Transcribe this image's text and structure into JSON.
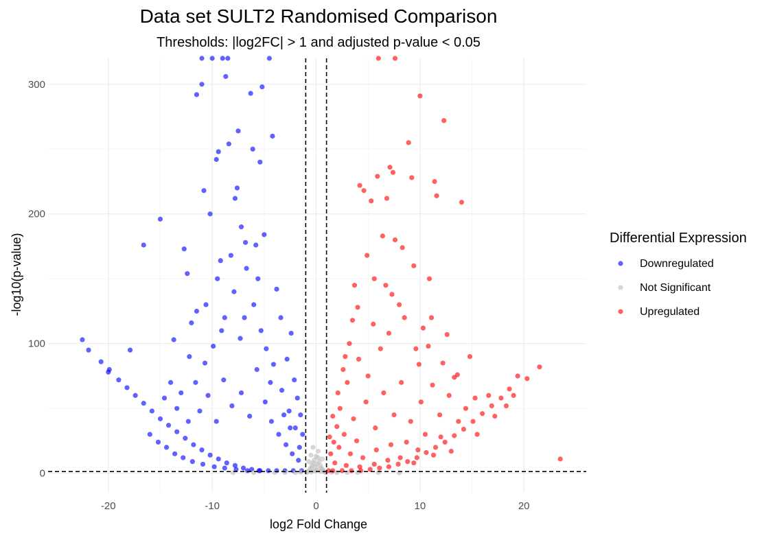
{
  "chart_data": {
    "type": "scatter",
    "title": "Data set SULT2 Randomised Comparison",
    "subtitle": "Thresholds: |log2FC| > 1 and adjusted p-value < 0.05",
    "xlabel": "log2 Fold Change",
    "ylabel": "-log10(p-value)",
    "xlim": [
      -25.8,
      26.0
    ],
    "ylim": [
      -15,
      320
    ],
    "x_ticks": [
      -20,
      -10,
      0,
      10,
      20
    ],
    "y_ticks": [
      0,
      100,
      200,
      300
    ],
    "grid": true,
    "log2fc_threshold": 1,
    "neglog10p_threshold": 1.3,
    "legend": {
      "title": "Differential Expression",
      "placement": "right",
      "entries": [
        {
          "label": "Downregulated",
          "color": "#0000ff"
        },
        {
          "label": "Not Significant",
          "color": "#bfbfbf"
        },
        {
          "label": "Upregulated",
          "color": "#ff0000"
        }
      ]
    },
    "series": [
      {
        "name": "Downregulated",
        "color": "#0000ff",
        "points": [
          [
            -22.5,
            103
          ],
          [
            -21.9,
            95
          ],
          [
            -20.7,
            86
          ],
          [
            -20.0,
            78
          ],
          [
            -17.9,
            95
          ],
          [
            -16.6,
            176
          ],
          [
            -15.0,
            196
          ],
          [
            -13.7,
            103
          ],
          [
            -12.7,
            173
          ],
          [
            -12.4,
            154
          ],
          [
            -12.0,
            116
          ],
          [
            -11.5,
            125
          ],
          [
            -10.8,
            218
          ],
          [
            -10.2,
            200
          ],
          [
            -9.6,
            242
          ],
          [
            -9.4,
            248
          ],
          [
            -9.2,
            164
          ],
          [
            -8.7,
            306
          ],
          [
            -8.4,
            254
          ],
          [
            -7.8,
            212
          ],
          [
            -7.6,
            220
          ],
          [
            -7.5,
            264
          ],
          [
            -7.2,
            190
          ],
          [
            -6.8,
            178
          ],
          [
            -6.3,
            293
          ],
          [
            -6.1,
            250
          ],
          [
            -5.8,
            176
          ],
          [
            -5.4,
            240
          ],
          [
            -5.2,
            298
          ],
          [
            -5.0,
            184
          ],
          [
            -4.2,
            260
          ],
          [
            -3.8,
            142
          ],
          [
            -2.4,
            108
          ],
          [
            -11.0,
            300
          ],
          [
            -11.5,
            292
          ],
          [
            -11.0,
            320
          ],
          [
            -10.0,
            320
          ],
          [
            -9.0,
            320
          ],
          [
            -8.5,
            320
          ],
          [
            -4.5,
            320
          ],
          [
            -19.9,
            80
          ],
          [
            -19.0,
            72
          ],
          [
            -18.2,
            66
          ],
          [
            -17.4,
            60
          ],
          [
            -16.6,
            54
          ],
          [
            -15.8,
            48
          ],
          [
            -15.0,
            42
          ],
          [
            -14.2,
            37
          ],
          [
            -13.4,
            32
          ],
          [
            -12.6,
            27
          ],
          [
            -11.8,
            22
          ],
          [
            -11.0,
            18
          ],
          [
            -10.2,
            14
          ],
          [
            -9.4,
            11
          ],
          [
            -8.6,
            8
          ],
          [
            -7.8,
            6
          ],
          [
            -7.0,
            4
          ],
          [
            -6.2,
            3
          ],
          [
            -5.4,
            2
          ],
          [
            -4.6,
            2
          ],
          [
            -3.8,
            2
          ],
          [
            -3.0,
            2
          ],
          [
            -2.2,
            2
          ],
          [
            -1.4,
            2
          ],
          [
            -9.5,
            150
          ],
          [
            -8.2,
            168
          ],
          [
            -6.7,
            158
          ],
          [
            -5.6,
            150
          ],
          [
            -3.4,
            120
          ],
          [
            -2.8,
            88
          ],
          [
            -2.1,
            72
          ],
          [
            -1.8,
            58
          ],
          [
            -1.5,
            45
          ],
          [
            -1.3,
            30
          ],
          [
            -12.2,
            90
          ],
          [
            -13.0,
            62
          ],
          [
            -14.0,
            70
          ],
          [
            -10.6,
            130
          ],
          [
            -9.9,
            98
          ],
          [
            -8.8,
            120
          ],
          [
            -7.3,
            104
          ],
          [
            -6.0,
            130
          ],
          [
            -4.8,
            96
          ],
          [
            -4.1,
            84
          ],
          [
            -3.3,
            64
          ],
          [
            -2.6,
            48
          ],
          [
            -2.0,
            35
          ],
          [
            -1.6,
            20
          ],
          [
            -16.0,
            30
          ],
          [
            -15.2,
            24
          ],
          [
            -14.4,
            20
          ],
          [
            -13.6,
            15
          ],
          [
            -12.8,
            12
          ],
          [
            -11.9,
            9
          ],
          [
            -10.9,
            7
          ],
          [
            -9.8,
            5
          ],
          [
            -8.8,
            4
          ],
          [
            -7.7,
            3
          ],
          [
            -6.6,
            2
          ],
          [
            -5.5,
            2
          ],
          [
            -11.2,
            48
          ],
          [
            -10.4,
            60
          ],
          [
            -9.6,
            40
          ],
          [
            -8.9,
            72
          ],
          [
            -8.1,
            52
          ],
          [
            -7.2,
            62
          ],
          [
            -6.4,
            44
          ],
          [
            -5.7,
            80
          ],
          [
            -4.9,
            55
          ],
          [
            -4.3,
            40
          ],
          [
            -3.6,
            30
          ],
          [
            -2.9,
            22
          ],
          [
            -2.3,
            15
          ],
          [
            -1.7,
            10
          ],
          [
            -12.3,
            40
          ],
          [
            -13.4,
            50
          ],
          [
            -14.6,
            58
          ],
          [
            -11.6,
            70
          ],
          [
            -10.7,
            85
          ],
          [
            -9.1,
            110
          ],
          [
            -7.9,
            140
          ],
          [
            -6.9,
            120
          ],
          [
            -5.3,
            110
          ],
          [
            -4.4,
            70
          ],
          [
            -3.1,
            45
          ],
          [
            -2.5,
            35
          ]
        ]
      },
      {
        "name": "Not Significant",
        "color": "#bfbfbf",
        "points": [
          [
            -0.9,
            0.5
          ],
          [
            -0.8,
            1.5
          ],
          [
            -0.6,
            3
          ],
          [
            -0.5,
            4
          ],
          [
            -0.4,
            6
          ],
          [
            -0.3,
            8
          ],
          [
            -0.2,
            10
          ],
          [
            -0.1,
            5
          ],
          [
            0.0,
            2
          ],
          [
            0.1,
            7
          ],
          [
            0.2,
            12
          ],
          [
            0.3,
            9
          ],
          [
            0.4,
            6
          ],
          [
            0.5,
            4
          ],
          [
            0.6,
            3
          ],
          [
            0.7,
            2
          ],
          [
            0.8,
            1.2
          ],
          [
            0.9,
            0.6
          ],
          [
            -2.0,
            0.4
          ],
          [
            -4.0,
            0.6
          ],
          [
            -6.0,
            0.5
          ],
          [
            -8.0,
            0.4
          ],
          [
            2.0,
            0.5
          ],
          [
            4.0,
            0.6
          ],
          [
            6.0,
            0.5
          ],
          [
            8.0,
            0.4
          ],
          [
            -0.5,
            14
          ],
          [
            0.2,
            17
          ],
          [
            -0.3,
            20
          ],
          [
            0.0,
            13
          ],
          [
            -0.7,
            9
          ],
          [
            0.6,
            11
          ],
          [
            -1.5,
            0.8
          ],
          [
            1.5,
            0.8
          ],
          [
            -3.0,
            0.5
          ],
          [
            3.0,
            0.5
          ],
          [
            -0.15,
            2
          ],
          [
            0.15,
            3
          ],
          [
            -0.45,
            1
          ],
          [
            0.45,
            1.5
          ]
        ]
      },
      {
        "name": "Upregulated",
        "color": "#ff0000",
        "points": [
          [
            23.5,
            11
          ],
          [
            21.5,
            82
          ],
          [
            20.3,
            73
          ],
          [
            19.4,
            75
          ],
          [
            18.6,
            65
          ],
          [
            17.8,
            58
          ],
          [
            16.9,
            52
          ],
          [
            16.0,
            46
          ],
          [
            15.1,
            40
          ],
          [
            14.2,
            34
          ],
          [
            13.3,
            29
          ],
          [
            12.4,
            24
          ],
          [
            11.5,
            20
          ],
          [
            10.6,
            16
          ],
          [
            9.7,
            12
          ],
          [
            8.8,
            9
          ],
          [
            7.9,
            7
          ],
          [
            7.0,
            5
          ],
          [
            6.1,
            4
          ],
          [
            5.2,
            3
          ],
          [
            4.3,
            2
          ],
          [
            3.4,
            2
          ],
          [
            2.5,
            2
          ],
          [
            1.6,
            2
          ],
          [
            1.2,
            2
          ],
          [
            1.3,
            28
          ],
          [
            1.6,
            44
          ],
          [
            2.1,
            62
          ],
          [
            2.6,
            80
          ],
          [
            3.2,
            100
          ],
          [
            3.7,
            145
          ],
          [
            4.2,
            222
          ],
          [
            4.6,
            218
          ],
          [
            5.3,
            210
          ],
          [
            5.9,
            229
          ],
          [
            6.4,
            183
          ],
          [
            6.8,
            212
          ],
          [
            7.1,
            236
          ],
          [
            7.4,
            232
          ],
          [
            7.6,
            180
          ],
          [
            8.3,
            174
          ],
          [
            8.9,
            255
          ],
          [
            9.2,
            228
          ],
          [
            9.4,
            160
          ],
          [
            10.0,
            291
          ],
          [
            10.3,
            112
          ],
          [
            10.9,
            150
          ],
          [
            11.1,
            120
          ],
          [
            11.4,
            225
          ],
          [
            11.6,
            214
          ],
          [
            12.3,
            272
          ],
          [
            12.6,
            107
          ],
          [
            13.3,
            74
          ],
          [
            14.0,
            209
          ],
          [
            14.8,
            90
          ],
          [
            6.0,
            320
          ],
          [
            7.6,
            320
          ],
          [
            4.9,
            168
          ],
          [
            5.6,
            150
          ],
          [
            6.7,
            145
          ],
          [
            7.3,
            138
          ],
          [
            8.0,
            130
          ],
          [
            5.5,
            115
          ],
          [
            4.0,
            128
          ],
          [
            3.5,
            118
          ],
          [
            2.8,
            90
          ],
          [
            9.6,
            96
          ],
          [
            10.8,
            98
          ],
          [
            12.2,
            85
          ],
          [
            13.6,
            76
          ],
          [
            15.3,
            58
          ],
          [
            16.6,
            60
          ],
          [
            2.3,
            50
          ],
          [
            2.0,
            36
          ],
          [
            1.7,
            24
          ],
          [
            1.4,
            15
          ],
          [
            3.0,
            70
          ],
          [
            4.1,
            88
          ],
          [
            5.0,
            75
          ],
          [
            6.2,
            96
          ],
          [
            7.0,
            108
          ],
          [
            8.5,
            120
          ],
          [
            9.9,
            84
          ],
          [
            11.2,
            68
          ],
          [
            12.8,
            60
          ],
          [
            14.4,
            50
          ],
          [
            3.6,
            42
          ],
          [
            4.8,
            55
          ],
          [
            6.5,
            62
          ],
          [
            8.2,
            70
          ],
          [
            10.1,
            55
          ],
          [
            11.9,
            45
          ],
          [
            13.7,
            40
          ],
          [
            2.7,
            30
          ],
          [
            3.9,
            25
          ],
          [
            5.7,
            35
          ],
          [
            7.5,
            45
          ],
          [
            9.1,
            40
          ],
          [
            10.5,
            30
          ],
          [
            12.0,
            28
          ],
          [
            2.2,
            20
          ],
          [
            3.3,
            15
          ],
          [
            4.5,
            12
          ],
          [
            5.8,
            18
          ],
          [
            7.2,
            22
          ],
          [
            8.7,
            24
          ],
          [
            9.8,
            18
          ],
          [
            11.3,
            14
          ],
          [
            13.0,
            17
          ],
          [
            15.5,
            30
          ],
          [
            17.2,
            44
          ],
          [
            18.3,
            52
          ],
          [
            19.0,
            60
          ],
          [
            1.8,
            8
          ],
          [
            2.9,
            6
          ],
          [
            4.2,
            5
          ],
          [
            5.6,
            7
          ],
          [
            6.9,
            10
          ],
          [
            8.1,
            12
          ],
          [
            9.4,
            8
          ]
        ]
      }
    ]
  }
}
